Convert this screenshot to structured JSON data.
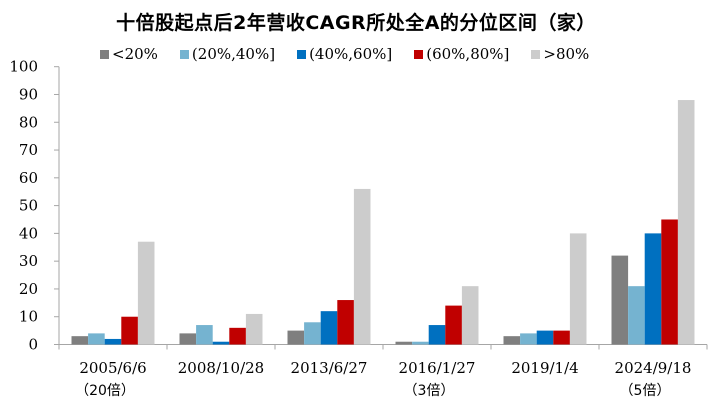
{
  "chart_data": {
    "type": "bar",
    "title": "十倍股起点后2年营收CAGR所处全A的分位区间（家）",
    "xlabel": "",
    "ylabel": "",
    "ylim": [
      0,
      100
    ],
    "yticks": [
      0,
      10,
      20,
      30,
      40,
      50,
      60,
      70,
      80,
      90,
      100
    ],
    "grid": false,
    "legend_position": "top",
    "categories": [
      "2005/6/6",
      "2008/10/28",
      "2013/6/27",
      "2016/1/27",
      "2019/1/4",
      "2024/9/18"
    ],
    "category_sublabels": [
      "（20倍）",
      "",
      "",
      "（3倍）",
      "",
      "（5倍）"
    ],
    "series": [
      {
        "name": "<20%",
        "color": "#7f7f7f",
        "values": [
          3,
          4,
          5,
          1,
          3,
          32
        ]
      },
      {
        "name": "(20%,40%]",
        "color": "#75b3d0",
        "values": [
          4,
          7,
          8,
          1,
          4,
          21
        ]
      },
      {
        "name": "(40%,60%]",
        "color": "#0070c0",
        "values": [
          2,
          1,
          12,
          7,
          5,
          40
        ]
      },
      {
        "name": "(60%,80%]",
        "color": "#c00000",
        "values": [
          10,
          6,
          16,
          14,
          5,
          45
        ]
      },
      {
        "name": ">80%",
        "color": "#cccccc",
        "values": [
          37,
          11,
          56,
          21,
          40,
          88
        ]
      }
    ]
  }
}
